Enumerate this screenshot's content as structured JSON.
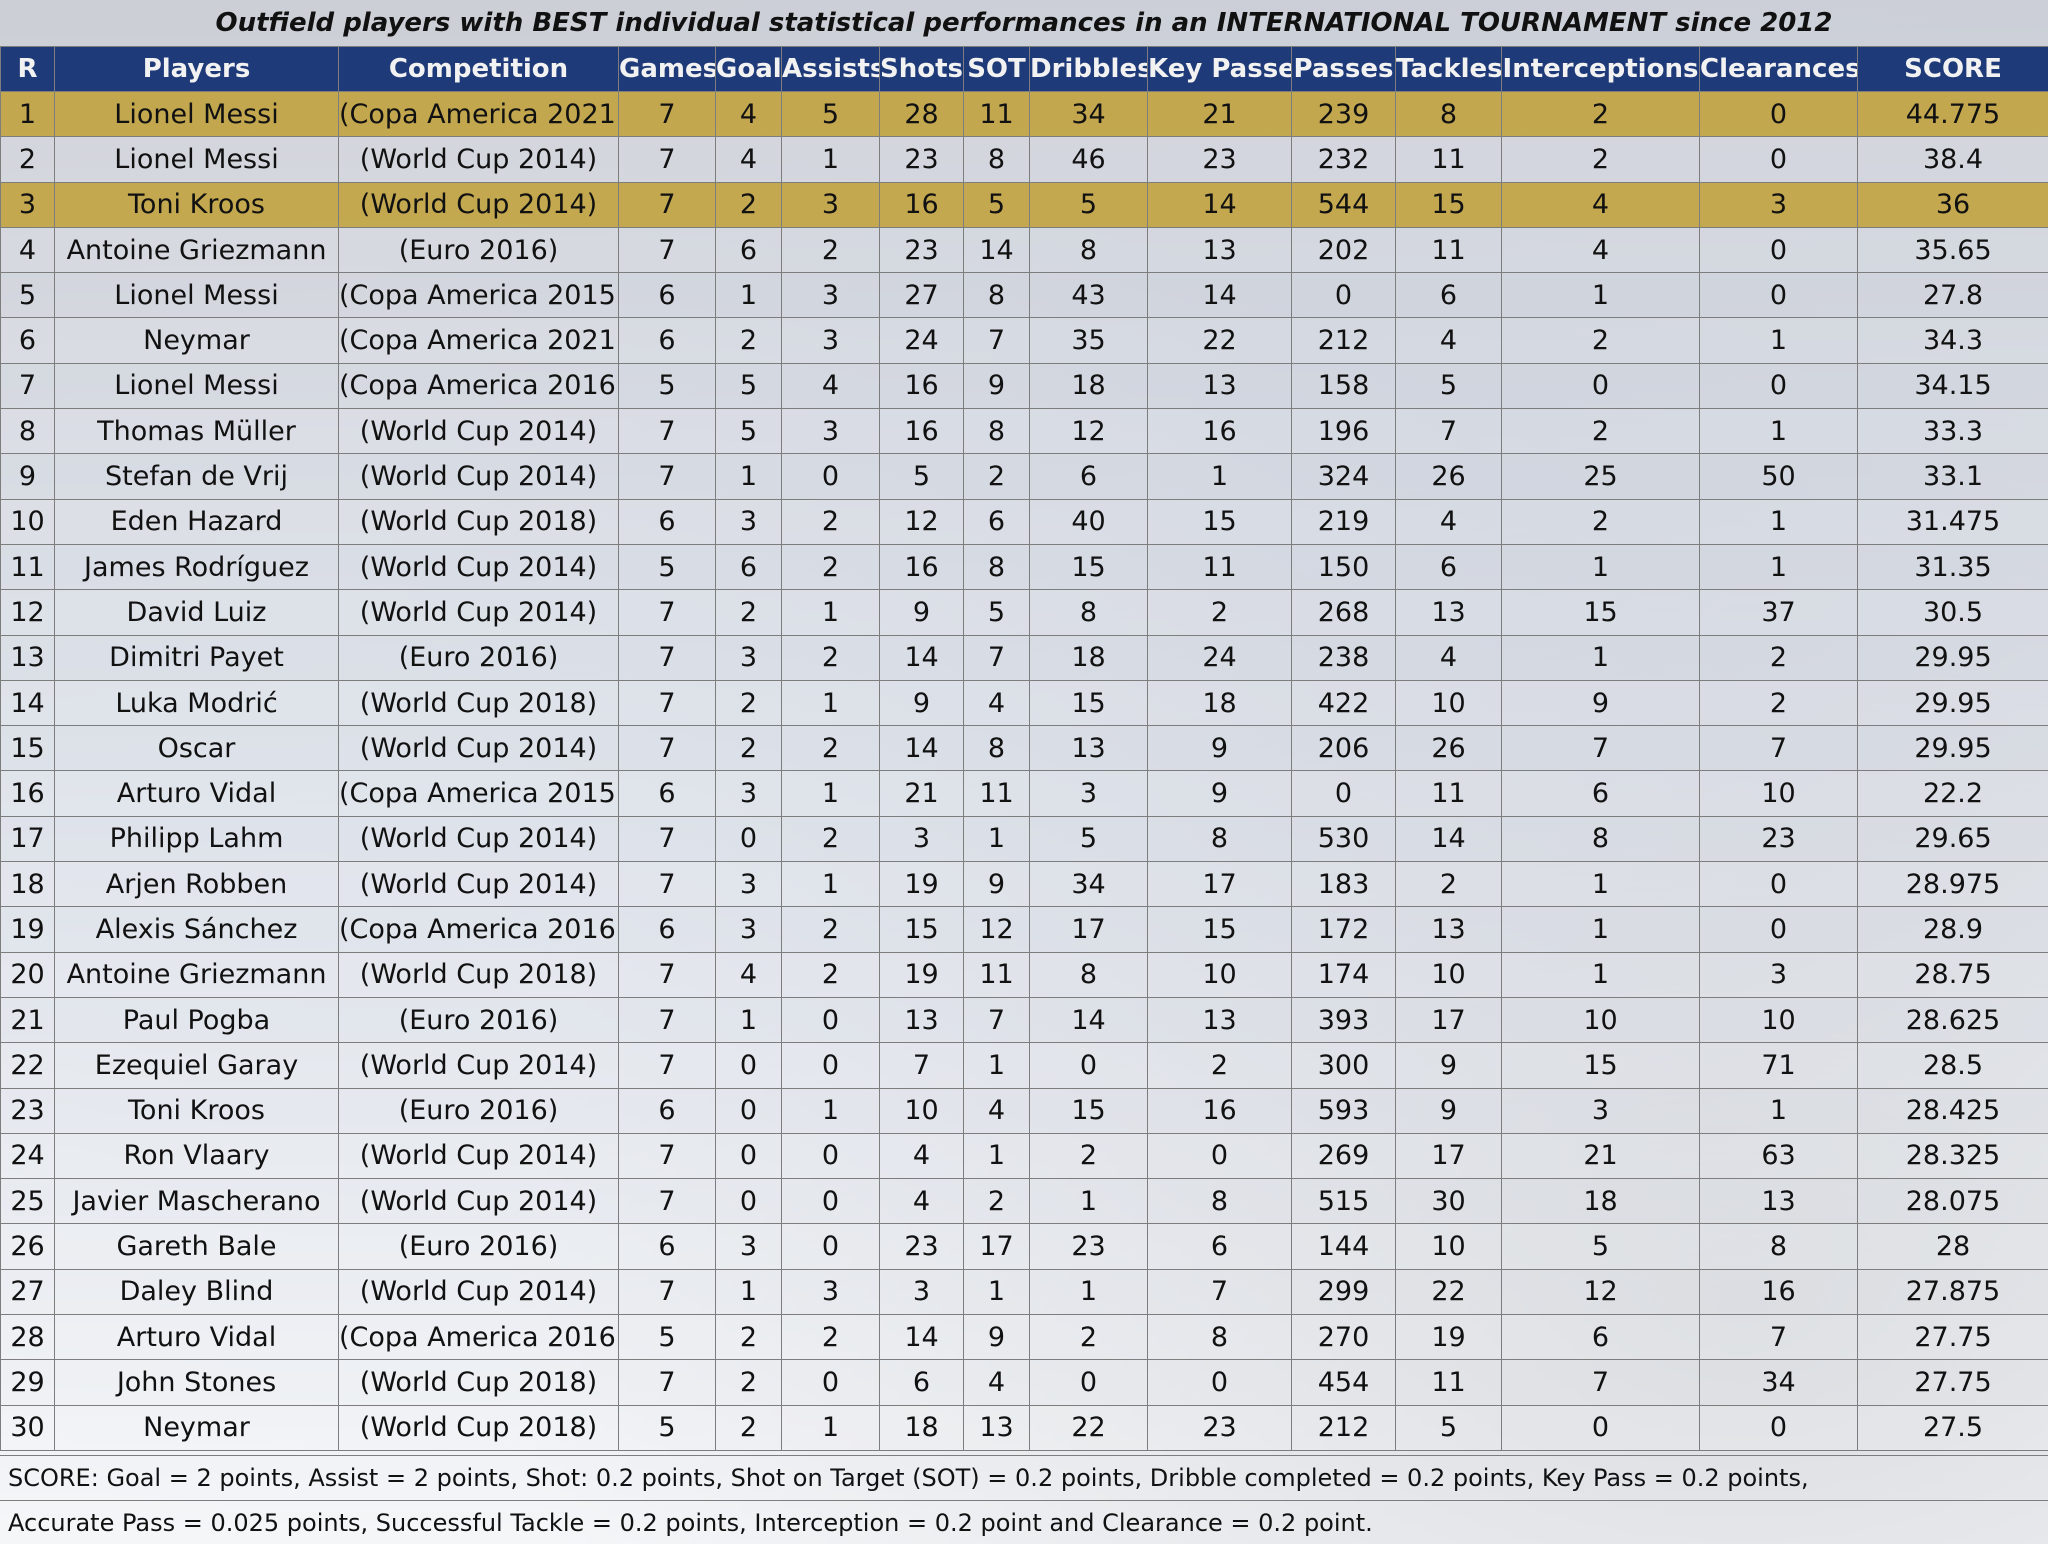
{
  "title": "Outfield players with BEST individual statistical performances in an INTERNATIONAL TOURNAMENT since 2012",
  "columns": [
    "R",
    "Players",
    "Competition",
    "Games",
    "Goals",
    "Assists",
    "Shots",
    "SOT",
    "Dribbles",
    "Key Passes",
    "Passes",
    "Tackles",
    "Interceptions",
    "Clearances",
    "SCORE"
  ],
  "highlight_color": "#be9614",
  "header_color": "#1f3a78",
  "rows": [
    {
      "r": "1",
      "player": "Lionel Messi",
      "competition": "(Copa America 2021)",
      "games": "7",
      "goals": "4",
      "assists": "5",
      "shots": "28",
      "sot": "11",
      "dribbles": "34",
      "key_passes": "21",
      "passes": "239",
      "tackles": "8",
      "interceptions": "2",
      "clearances": "0",
      "score": "44.775",
      "highlight": true
    },
    {
      "r": "2",
      "player": "Lionel Messi",
      "competition": "(World Cup 2014)",
      "games": "7",
      "goals": "4",
      "assists": "1",
      "shots": "23",
      "sot": "8",
      "dribbles": "46",
      "key_passes": "23",
      "passes": "232",
      "tackles": "11",
      "interceptions": "2",
      "clearances": "0",
      "score": "38.4",
      "highlight": false
    },
    {
      "r": "3",
      "player": "Toni Kroos",
      "competition": "(World Cup 2014)",
      "games": "7",
      "goals": "2",
      "assists": "3",
      "shots": "16",
      "sot": "5",
      "dribbles": "5",
      "key_passes": "14",
      "passes": "544",
      "tackles": "15",
      "interceptions": "4",
      "clearances": "3",
      "score": "36",
      "highlight": true
    },
    {
      "r": "4",
      "player": "Antoine Griezmann",
      "competition": "(Euro 2016)",
      "games": "7",
      "goals": "6",
      "assists": "2",
      "shots": "23",
      "sot": "14",
      "dribbles": "8",
      "key_passes": "13",
      "passes": "202",
      "tackles": "11",
      "interceptions": "4",
      "clearances": "0",
      "score": "35.65",
      "highlight": false
    },
    {
      "r": "5",
      "player": "Lionel Messi",
      "competition": "(Copa America 2015)",
      "games": "6",
      "goals": "1",
      "assists": "3",
      "shots": "27",
      "sot": "8",
      "dribbles": "43",
      "key_passes": "14",
      "passes": "0",
      "tackles": "6",
      "interceptions": "1",
      "clearances": "0",
      "score": "27.8",
      "highlight": false
    },
    {
      "r": "6",
      "player": "Neymar",
      "competition": "(Copa America 2021)",
      "games": "6",
      "goals": "2",
      "assists": "3",
      "shots": "24",
      "sot": "7",
      "dribbles": "35",
      "key_passes": "22",
      "passes": "212",
      "tackles": "4",
      "interceptions": "2",
      "clearances": "1",
      "score": "34.3",
      "highlight": false
    },
    {
      "r": "7",
      "player": "Lionel Messi",
      "competition": "(Copa America 2016)",
      "games": "5",
      "goals": "5",
      "assists": "4",
      "shots": "16",
      "sot": "9",
      "dribbles": "18",
      "key_passes": "13",
      "passes": "158",
      "tackles": "5",
      "interceptions": "0",
      "clearances": "0",
      "score": "34.15",
      "highlight": false
    },
    {
      "r": "8",
      "player": "Thomas Müller",
      "competition": "(World Cup 2014)",
      "games": "7",
      "goals": "5",
      "assists": "3",
      "shots": "16",
      "sot": "8",
      "dribbles": "12",
      "key_passes": "16",
      "passes": "196",
      "tackles": "7",
      "interceptions": "2",
      "clearances": "1",
      "score": "33.3",
      "highlight": false
    },
    {
      "r": "9",
      "player": "Stefan de Vrij",
      "competition": "(World Cup 2014)",
      "games": "7",
      "goals": "1",
      "assists": "0",
      "shots": "5",
      "sot": "2",
      "dribbles": "6",
      "key_passes": "1",
      "passes": "324",
      "tackles": "26",
      "interceptions": "25",
      "clearances": "50",
      "score": "33.1",
      "highlight": false
    },
    {
      "r": "10",
      "player": "Eden Hazard",
      "competition": "(World Cup 2018)",
      "games": "6",
      "goals": "3",
      "assists": "2",
      "shots": "12",
      "sot": "6",
      "dribbles": "40",
      "key_passes": "15",
      "passes": "219",
      "tackles": "4",
      "interceptions": "2",
      "clearances": "1",
      "score": "31.475",
      "highlight": false
    },
    {
      "r": "11",
      "player": "James Rodríguez",
      "competition": "(World Cup 2014)",
      "games": "5",
      "goals": "6",
      "assists": "2",
      "shots": "16",
      "sot": "8",
      "dribbles": "15",
      "key_passes": "11",
      "passes": "150",
      "tackles": "6",
      "interceptions": "1",
      "clearances": "1",
      "score": "31.35",
      "highlight": false
    },
    {
      "r": "12",
      "player": "David Luiz",
      "competition": "(World Cup 2014)",
      "games": "7",
      "goals": "2",
      "assists": "1",
      "shots": "9",
      "sot": "5",
      "dribbles": "8",
      "key_passes": "2",
      "passes": "268",
      "tackles": "13",
      "interceptions": "15",
      "clearances": "37",
      "score": "30.5",
      "highlight": false
    },
    {
      "r": "13",
      "player": "Dimitri Payet",
      "competition": "(Euro 2016)",
      "games": "7",
      "goals": "3",
      "assists": "2",
      "shots": "14",
      "sot": "7",
      "dribbles": "18",
      "key_passes": "24",
      "passes": "238",
      "tackles": "4",
      "interceptions": "1",
      "clearances": "2",
      "score": "29.95",
      "highlight": false
    },
    {
      "r": "14",
      "player": "Luka Modrić",
      "competition": "(World Cup 2018)",
      "games": "7",
      "goals": "2",
      "assists": "1",
      "shots": "9",
      "sot": "4",
      "dribbles": "15",
      "key_passes": "18",
      "passes": "422",
      "tackles": "10",
      "interceptions": "9",
      "clearances": "2",
      "score": "29.95",
      "highlight": false
    },
    {
      "r": "15",
      "player": "Oscar",
      "competition": "(World Cup 2014)",
      "games": "7",
      "goals": "2",
      "assists": "2",
      "shots": "14",
      "sot": "8",
      "dribbles": "13",
      "key_passes": "9",
      "passes": "206",
      "tackles": "26",
      "interceptions": "7",
      "clearances": "7",
      "score": "29.95",
      "highlight": false
    },
    {
      "r": "16",
      "player": "Arturo Vidal",
      "competition": "(Copa America 2015)",
      "games": "6",
      "goals": "3",
      "assists": "1",
      "shots": "21",
      "sot": "11",
      "dribbles": "3",
      "key_passes": "9",
      "passes": "0",
      "tackles": "11",
      "interceptions": "6",
      "clearances": "10",
      "score": "22.2",
      "highlight": false
    },
    {
      "r": "17",
      "player": "Philipp Lahm",
      "competition": "(World Cup 2014)",
      "games": "7",
      "goals": "0",
      "assists": "2",
      "shots": "3",
      "sot": "1",
      "dribbles": "5",
      "key_passes": "8",
      "passes": "530",
      "tackles": "14",
      "interceptions": "8",
      "clearances": "23",
      "score": "29.65",
      "highlight": false
    },
    {
      "r": "18",
      "player": "Arjen Robben",
      "competition": "(World Cup 2014)",
      "games": "7",
      "goals": "3",
      "assists": "1",
      "shots": "19",
      "sot": "9",
      "dribbles": "34",
      "key_passes": "17",
      "passes": "183",
      "tackles": "2",
      "interceptions": "1",
      "clearances": "0",
      "score": "28.975",
      "highlight": false
    },
    {
      "r": "19",
      "player": "Alexis Sánchez",
      "competition": "(Copa America 2016)",
      "games": "6",
      "goals": "3",
      "assists": "2",
      "shots": "15",
      "sot": "12",
      "dribbles": "17",
      "key_passes": "15",
      "passes": "172",
      "tackles": "13",
      "interceptions": "1",
      "clearances": "0",
      "score": "28.9",
      "highlight": false
    },
    {
      "r": "20",
      "player": "Antoine Griezmann",
      "competition": "(World Cup 2018)",
      "games": "7",
      "goals": "4",
      "assists": "2",
      "shots": "19",
      "sot": "11",
      "dribbles": "8",
      "key_passes": "10",
      "passes": "174",
      "tackles": "10",
      "interceptions": "1",
      "clearances": "3",
      "score": "28.75",
      "highlight": false
    },
    {
      "r": "21",
      "player": "Paul Pogba",
      "competition": "(Euro 2016)",
      "games": "7",
      "goals": "1",
      "assists": "0",
      "shots": "13",
      "sot": "7",
      "dribbles": "14",
      "key_passes": "13",
      "passes": "393",
      "tackles": "17",
      "interceptions": "10",
      "clearances": "10",
      "score": "28.625",
      "highlight": false
    },
    {
      "r": "22",
      "player": "Ezequiel Garay",
      "competition": "(World Cup 2014)",
      "games": "7",
      "goals": "0",
      "assists": "0",
      "shots": "7",
      "sot": "1",
      "dribbles": "0",
      "key_passes": "2",
      "passes": "300",
      "tackles": "9",
      "interceptions": "15",
      "clearances": "71",
      "score": "28.5",
      "highlight": false
    },
    {
      "r": "23",
      "player": "Toni Kroos",
      "competition": "(Euro 2016)",
      "games": "6",
      "goals": "0",
      "assists": "1",
      "shots": "10",
      "sot": "4",
      "dribbles": "15",
      "key_passes": "16",
      "passes": "593",
      "tackles": "9",
      "interceptions": "3",
      "clearances": "1",
      "score": "28.425",
      "highlight": false
    },
    {
      "r": "24",
      "player": "Ron Vlaary",
      "competition": "(World Cup 2014)",
      "games": "7",
      "goals": "0",
      "assists": "0",
      "shots": "4",
      "sot": "1",
      "dribbles": "2",
      "key_passes": "0",
      "passes": "269",
      "tackles": "17",
      "interceptions": "21",
      "clearances": "63",
      "score": "28.325",
      "highlight": false
    },
    {
      "r": "25",
      "player": "Javier Mascherano",
      "competition": "(World Cup 2014)",
      "games": "7",
      "goals": "0",
      "assists": "0",
      "shots": "4",
      "sot": "2",
      "dribbles": "1",
      "key_passes": "8",
      "passes": "515",
      "tackles": "30",
      "interceptions": "18",
      "clearances": "13",
      "score": "28.075",
      "highlight": false
    },
    {
      "r": "26",
      "player": "Gareth Bale",
      "competition": "(Euro 2016)",
      "games": "6",
      "goals": "3",
      "assists": "0",
      "shots": "23",
      "sot": "17",
      "dribbles": "23",
      "key_passes": "6",
      "passes": "144",
      "tackles": "10",
      "interceptions": "5",
      "clearances": "8",
      "score": "28",
      "highlight": false
    },
    {
      "r": "27",
      "player": "Daley Blind",
      "competition": "(World Cup 2014)",
      "games": "7",
      "goals": "1",
      "assists": "3",
      "shots": "3",
      "sot": "1",
      "dribbles": "1",
      "key_passes": "7",
      "passes": "299",
      "tackles": "22",
      "interceptions": "12",
      "clearances": "16",
      "score": "27.875",
      "highlight": false
    },
    {
      "r": "28",
      "player": "Arturo Vidal",
      "competition": "(Copa America 2016)",
      "games": "5",
      "goals": "2",
      "assists": "2",
      "shots": "14",
      "sot": "9",
      "dribbles": "2",
      "key_passes": "8",
      "passes": "270",
      "tackles": "19",
      "interceptions": "6",
      "clearances": "7",
      "score": "27.75",
      "highlight": false
    },
    {
      "r": "29",
      "player": "John Stones",
      "competition": "(World Cup 2018)",
      "games": "7",
      "goals": "2",
      "assists": "0",
      "shots": "6",
      "sot": "4",
      "dribbles": "0",
      "key_passes": "0",
      "passes": "454",
      "tackles": "11",
      "interceptions": "7",
      "clearances": "34",
      "score": "27.75",
      "highlight": false
    },
    {
      "r": "30",
      "player": "Neymar",
      "competition": "(World Cup 2018)",
      "games": "5",
      "goals": "2",
      "assists": "1",
      "shots": "18",
      "sot": "13",
      "dribbles": "22",
      "key_passes": "23",
      "passes": "212",
      "tackles": "5",
      "interceptions": "0",
      "clearances": "0",
      "score": "27.5",
      "highlight": false
    }
  ],
  "footer": {
    "line1": "SCORE: Goal = 2 points, Assist = 2 points,  Shot: 0.2 points, Shot on Target (SOT) = 0.2 points, Dribble completed = 0.2 points, Key Pass = 0.2 points,",
    "line2": "Accurate Pass = 0.025 points, Successful Tackle = 0.2 points, Interception = 0.2 point and Clearance = 0.2 point."
  }
}
